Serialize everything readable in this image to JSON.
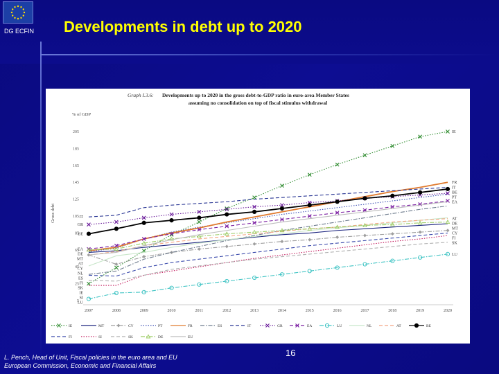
{
  "header": {
    "org_label": "DG ECFIN",
    "title": "Developments in debt up to 2020"
  },
  "footer": {
    "line1": "L. Pench, Head of Unit, Fiscal policies in the euro area and EU",
    "line2": "European Commission, Economic and Financial Affairs",
    "page_number": "16"
  },
  "colors": {
    "background": "#0b0b86",
    "title": "#ffff00",
    "text": "#ffffff"
  },
  "chart_data": {
    "type": "line",
    "title_prefix": "Graph I.3.6:",
    "title_line1": "Developments up to 2020 in the gross debt-to-GDP ratio in euro-area Member States",
    "title_line2": "assuming no consolidation on top of fiscal stimulus withdrawal",
    "unit_label": "% of GDP",
    "ylabel": "Gross debt",
    "ylim": [
      5,
      205
    ],
    "yticks": [
      5,
      25,
      45,
      65,
      85,
      105,
      125,
      145,
      165,
      185,
      205
    ],
    "x": [
      "2007",
      "2008",
      "2009",
      "2010",
      "2011",
      "2012",
      "2013",
      "2014",
      "2015",
      "2016",
      "2017",
      "2018",
      "2019",
      "2020"
    ],
    "series": [
      {
        "name": "IE",
        "color": "#2e8b2e",
        "style": "dotted",
        "marker": "x",
        "values": [
          25,
          44,
          64,
          83,
          98,
          114,
          127,
          141,
          154,
          166,
          177,
          188,
          199,
          212
        ]
      },
      {
        "name": "MT",
        "color": "#1a237e",
        "style": "solid",
        "marker": "none",
        "values": [
          62,
          64,
          68,
          71,
          74,
          77,
          80,
          83,
          85,
          88,
          90,
          92,
          94,
          96
        ]
      },
      {
        "name": "CY",
        "color": "#9e9e9e",
        "style": "dashdot",
        "marker": "diamond",
        "values": [
          59,
          48,
          57,
          62,
          66,
          69,
          72,
          75,
          77,
          80,
          82,
          84,
          86,
          88
        ]
      },
      {
        "name": "PT",
        "color": "#3f51b5",
        "style": "dotted",
        "marker": "none",
        "values": [
          63,
          67,
          78,
          86,
          92,
          97,
          102,
          107,
          111,
          115,
          119,
          123,
          127,
          131
        ]
      },
      {
        "name": "FR",
        "color": "#e07a2e",
        "style": "solid",
        "marker": "none",
        "values": [
          64,
          68,
          78,
          85,
          91,
          98,
          104,
          110,
          116,
          122,
          128,
          134,
          139,
          145
        ]
      },
      {
        "name": "ES",
        "color": "#6d7b8d",
        "style": "dashdot",
        "marker": "none",
        "values": [
          36,
          40,
          54,
          62,
          69,
          76,
          82,
          88,
          93,
          98,
          103,
          108,
          113,
          117
        ]
      },
      {
        "name": "IT",
        "color": "#283593",
        "style": "dashed",
        "marker": "none",
        "values": [
          104,
          106,
          115,
          118,
          120,
          122,
          125,
          127,
          129,
          131,
          133,
          135,
          137,
          139
        ]
      },
      {
        "name": "GR",
        "color": "#6a1b9a",
        "style": "dotted",
        "marker": "x",
        "values": [
          95,
          98,
          103,
          107,
          110,
          113,
          116,
          118,
          121,
          123,
          126,
          128,
          130,
          132
        ]
      },
      {
        "name": "EA",
        "color": "#7b1fa2",
        "style": "dashed",
        "marker": "x",
        "values": [
          66,
          70,
          78,
          84,
          89,
          93,
          97,
          101,
          105,
          109,
          112,
          116,
          119,
          123
        ]
      },
      {
        "name": "LU",
        "color": "#40c4c4",
        "style": "dashdot",
        "marker": "circle",
        "values": [
          7,
          14,
          15,
          20,
          24,
          28,
          32,
          36,
          40,
          44,
          48,
          52,
          56,
          60
        ]
      },
      {
        "name": "NL",
        "color": "#c8e6c9",
        "style": "solid",
        "marker": "none",
        "values": [
          46,
          58,
          62,
          68,
          73,
          77,
          81,
          84,
          88,
          91,
          94,
          97,
          100,
          103
        ]
      },
      {
        "name": "AT",
        "color": "#f4a582",
        "style": "dashed",
        "marker": "none",
        "values": [
          59,
          63,
          70,
          74,
          78,
          81,
          84,
          87,
          90,
          92,
          95,
          98,
          100,
          102
        ]
      },
      {
        "name": "BE",
        "color": "#000000",
        "style": "solid",
        "marker": "circle",
        "values": [
          84,
          90,
          97,
          100,
          103,
          107,
          110,
          114,
          118,
          122,
          126,
          129,
          133,
          137
        ]
      },
      {
        "name": "FI",
        "color": "#3949ab",
        "style": "dashed",
        "marker": "none",
        "values": [
          35,
          34,
          44,
          50,
          54,
          58,
          62,
          66,
          70,
          73,
          76,
          79,
          82,
          85
        ]
      },
      {
        "name": "SI",
        "color": "#c2185b",
        "style": "dotted",
        "marker": "none",
        "values": [
          23,
          23,
          35,
          40,
          45,
          50,
          55,
          59,
          63,
          67,
          71,
          75,
          78,
          82
        ]
      },
      {
        "name": "SK",
        "color": "#b0b0b0",
        "style": "dashed",
        "marker": "none",
        "values": [
          29,
          28,
          35,
          42,
          46,
          50,
          54,
          57,
          60,
          63,
          66,
          69,
          72,
          74
        ]
      },
      {
        "name": "DE",
        "color": "#9ccc65",
        "style": "dashdot",
        "marker": "triangle",
        "values": [
          65,
          66,
          73,
          78,
          81,
          84,
          86,
          88,
          90,
          92,
          94,
          95,
          97,
          98
        ]
      },
      {
        "name": "EU",
        "color": "#bdbdbd",
        "style": "solid",
        "marker": "none",
        "values": [
          59,
          62,
          70,
          77,
          83,
          88,
          93,
          98,
          102,
          106,
          110,
          114,
          118,
          122
        ]
      }
    ],
    "right_labels": [
      "IE",
      "IT",
      "FR",
      "BE",
      "EA",
      "DE",
      "PT",
      "MT",
      "AT",
      "CY",
      "SK",
      "FI",
      "LU"
    ],
    "left_labels": [
      "IT",
      "GR",
      "BE",
      "EA",
      "DE",
      "MT",
      "AT",
      "NL",
      "ES",
      "FI",
      "SK",
      "SI",
      "LU",
      "IE",
      "CY"
    ],
    "legend_rows": [
      [
        "IE",
        "MT",
        "CY",
        "PT",
        "FR",
        "ES",
        "IT",
        "GR",
        "EA",
        "LU",
        "NL",
        "AT",
        "BE"
      ],
      [
        "FI",
        "SI",
        "SK",
        "DE",
        "EU"
      ]
    ]
  }
}
